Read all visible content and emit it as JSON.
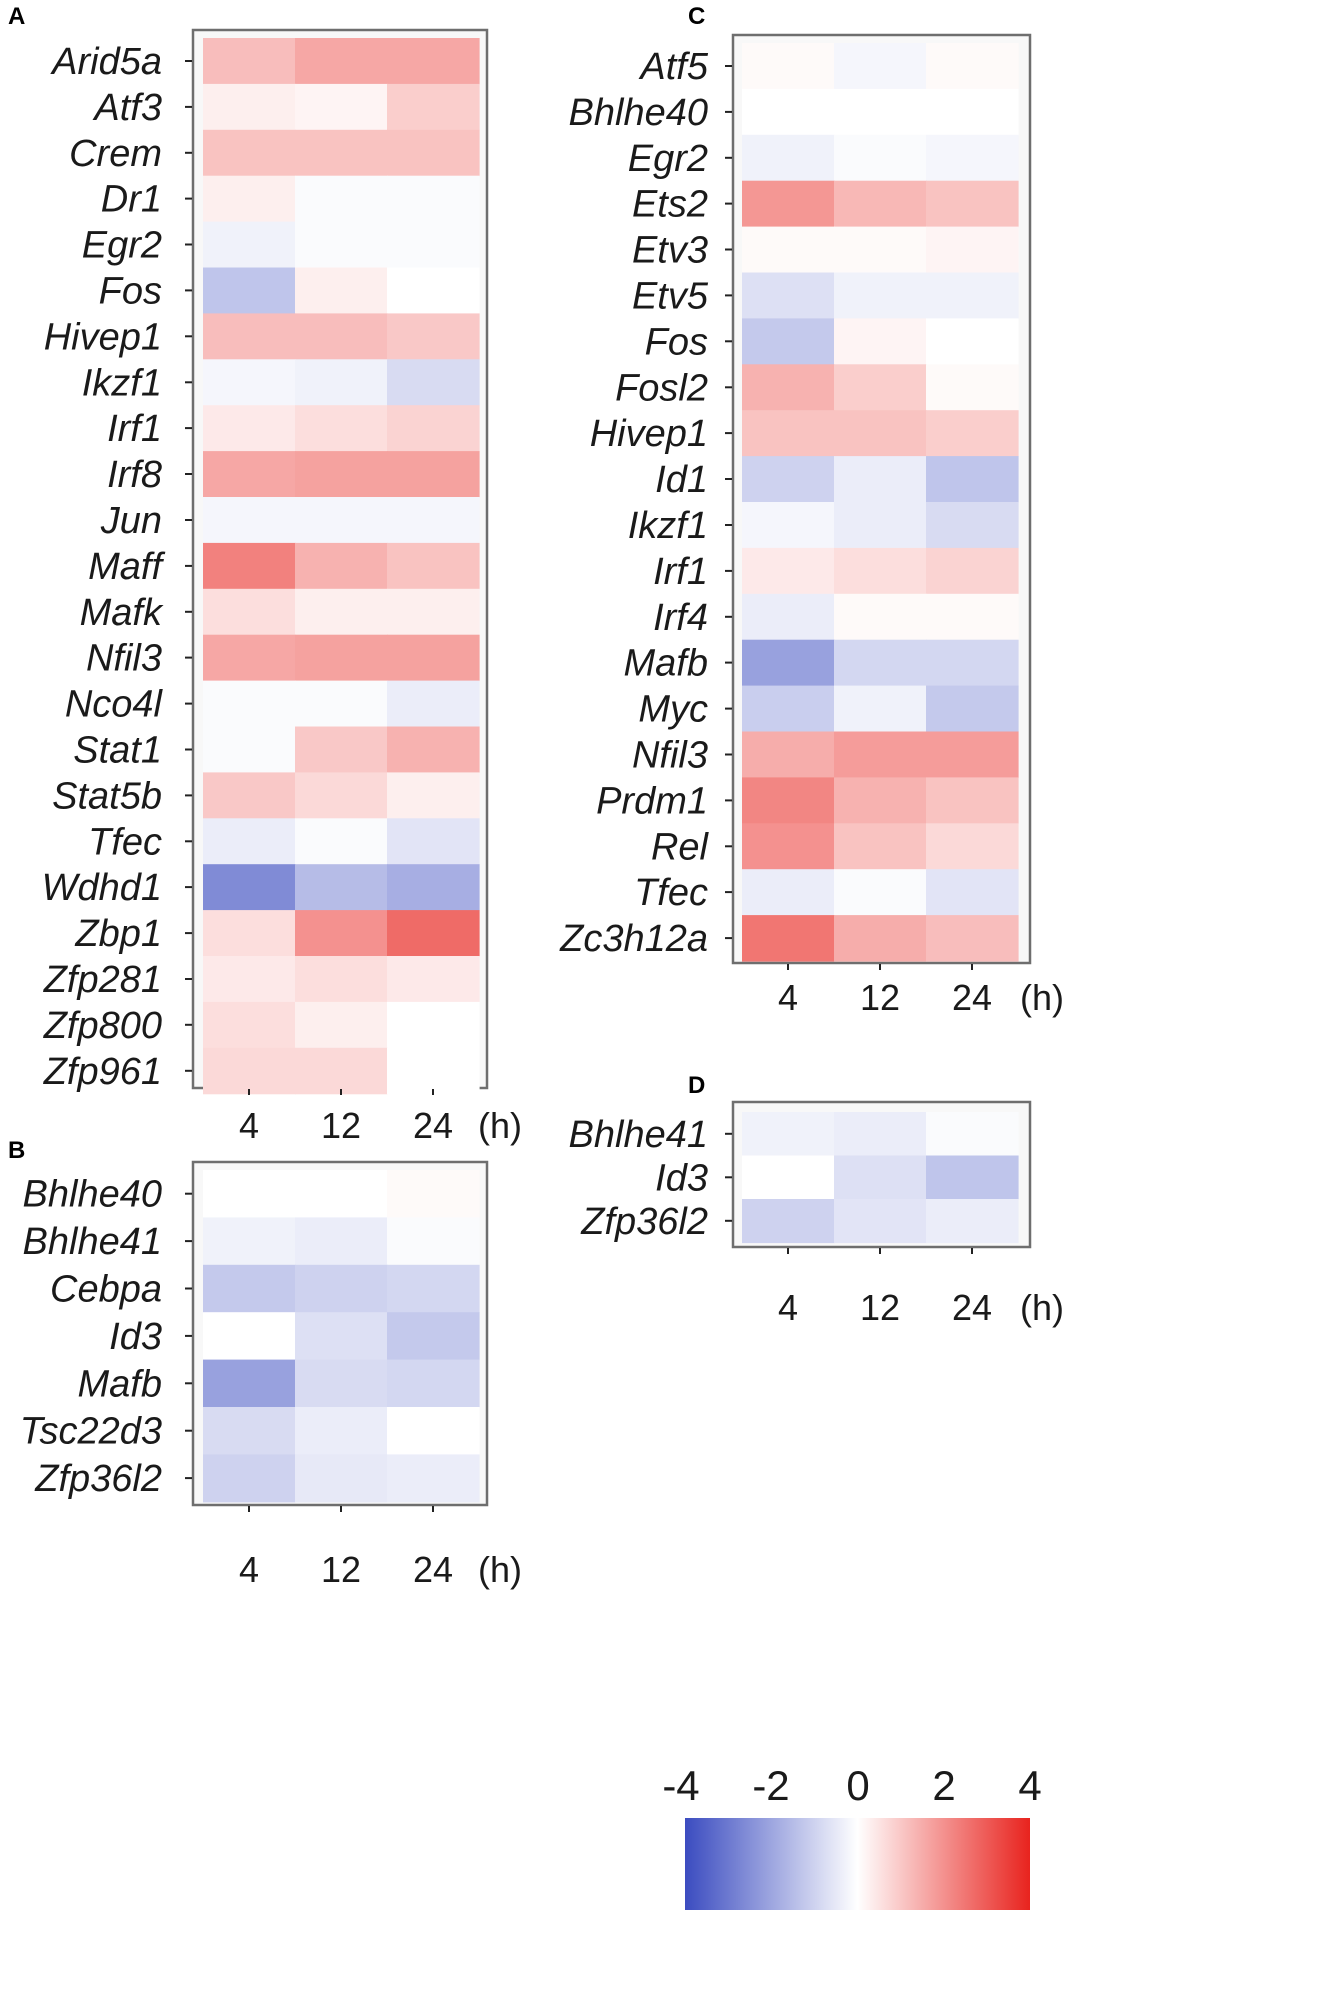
{
  "colors": {
    "negative": "#3b4cc0",
    "zero": "#ffffff",
    "positive": "#e8231e",
    "frame": "#6e6e6e",
    "tickmark": "#222222"
  },
  "chart_data": [
    {
      "panel": "A",
      "type": "heatmap",
      "x": [
        "4",
        "12",
        "24"
      ],
      "x_unit": "(h)",
      "genes": [
        "Arid5a",
        "Atf3",
        "Crem",
        "Dr1",
        "Egr2",
        "Fos",
        "Hivep1",
        "Ikzf1",
        "Irf1",
        "Irf8",
        "Jun",
        "Maff",
        "Mafk",
        "Nfil3",
        "Nco4l",
        "Stat1",
        "Stat5b",
        "Tfec",
        "Wdhd1",
        "Zbp1",
        "Zfp281",
        "Zfp800",
        "Zfp961"
      ],
      "values": [
        [
          1.2,
          1.6,
          1.6
        ],
        [
          0.3,
          0.2,
          0.9
        ],
        [
          1.1,
          1.1,
          1.1
        ],
        [
          0.3,
          -0.1,
          -0.1
        ],
        [
          -0.3,
          -0.1,
          -0.1
        ],
        [
          -1.3,
          0.3,
          0.0
        ],
        [
          1.2,
          1.2,
          1.0
        ],
        [
          -0.2,
          -0.3,
          -0.8
        ],
        [
          0.4,
          0.6,
          0.8
        ],
        [
          1.6,
          1.7,
          1.7
        ],
        [
          -0.2,
          -0.2,
          -0.2
        ],
        [
          2.3,
          1.4,
          1.1
        ],
        [
          0.6,
          0.3,
          0.3
        ],
        [
          1.6,
          1.7,
          1.7
        ],
        [
          -0.1,
          -0.1,
          -0.4
        ],
        [
          -0.1,
          1.0,
          1.4
        ],
        [
          1.0,
          0.7,
          0.3
        ],
        [
          -0.4,
          -0.1,
          -0.6
        ],
        [
          -2.6,
          -1.5,
          -1.8
        ],
        [
          0.6,
          2.0,
          2.7
        ],
        [
          0.4,
          0.6,
          0.4
        ],
        [
          0.6,
          0.3,
          0.0
        ],
        [
          0.7,
          0.7,
          0.0
        ]
      ]
    },
    {
      "panel": "B",
      "type": "heatmap",
      "x": [
        "4",
        "12",
        "24"
      ],
      "x_unit": "(h)",
      "genes": [
        "Bhlhe40",
        "Bhlhe41",
        "Cebpa",
        "Id3",
        "Mafb",
        "Tsc22d3",
        "Zfp36l2"
      ],
      "values": [
        [
          0.0,
          0.0,
          0.1
        ],
        [
          -0.3,
          -0.4,
          -0.1
        ],
        [
          -1.2,
          -1.0,
          -0.9
        ],
        [
          0.0,
          -0.7,
          -1.2
        ],
        [
          -2.1,
          -0.8,
          -0.9
        ],
        [
          -0.8,
          -0.4,
          0.0
        ],
        [
          -1.0,
          -0.5,
          -0.4
        ]
      ]
    },
    {
      "panel": "C",
      "type": "heatmap",
      "x": [
        "4",
        "12",
        "24"
      ],
      "x_unit": "(h)",
      "genes": [
        "Atf5",
        "Bhlhe40",
        "Egr2",
        "Ets2",
        "Etv3",
        "Etv5",
        "Fos",
        "Fosl2",
        "Hivep1",
        "Id1",
        "Ikzf1",
        "Irf1",
        "Irf4",
        "Mafb",
        "Myc",
        "Nfil3",
        "Prdm1",
        "Rel",
        "Tfec",
        "Zc3h12a"
      ],
      "values": [
        [
          0.1,
          -0.2,
          0.1
        ],
        [
          0.0,
          0.0,
          0.0
        ],
        [
          -0.3,
          -0.1,
          -0.2
        ],
        [
          1.9,
          1.3,
          1.1
        ],
        [
          0.1,
          0.1,
          0.2
        ],
        [
          -0.7,
          -0.3,
          -0.3
        ],
        [
          -1.2,
          0.2,
          0.0
        ],
        [
          1.4,
          0.9,
          0.1
        ],
        [
          1.1,
          1.1,
          0.9
        ],
        [
          -1.0,
          -0.4,
          -1.3
        ],
        [
          -0.2,
          -0.4,
          -0.8
        ],
        [
          0.4,
          0.6,
          0.8
        ],
        [
          -0.4,
          0.1,
          0.1
        ],
        [
          -2.1,
          -0.9,
          -0.9
        ],
        [
          -1.1,
          -0.3,
          -1.2
        ],
        [
          1.5,
          1.8,
          1.8
        ],
        [
          2.2,
          1.4,
          1.1
        ],
        [
          2.0,
          1.1,
          0.7
        ],
        [
          -0.4,
          -0.1,
          -0.6
        ],
        [
          2.5,
          1.5,
          1.2
        ]
      ]
    },
    {
      "panel": "D",
      "type": "heatmap",
      "x": [
        "4",
        "12",
        "24"
      ],
      "x_unit": "(h)",
      "genes": [
        "Bhlhe41",
        "Id3",
        "Zfp36l2"
      ],
      "values": [
        [
          -0.3,
          -0.4,
          -0.1
        ],
        [
          0.0,
          -0.7,
          -1.3
        ],
        [
          -1.0,
          -0.6,
          -0.4
        ]
      ]
    }
  ],
  "colorbar": {
    "ticks": [
      "-4",
      "-2",
      "0",
      "2",
      "4"
    ],
    "range": [
      -4,
      4
    ]
  }
}
